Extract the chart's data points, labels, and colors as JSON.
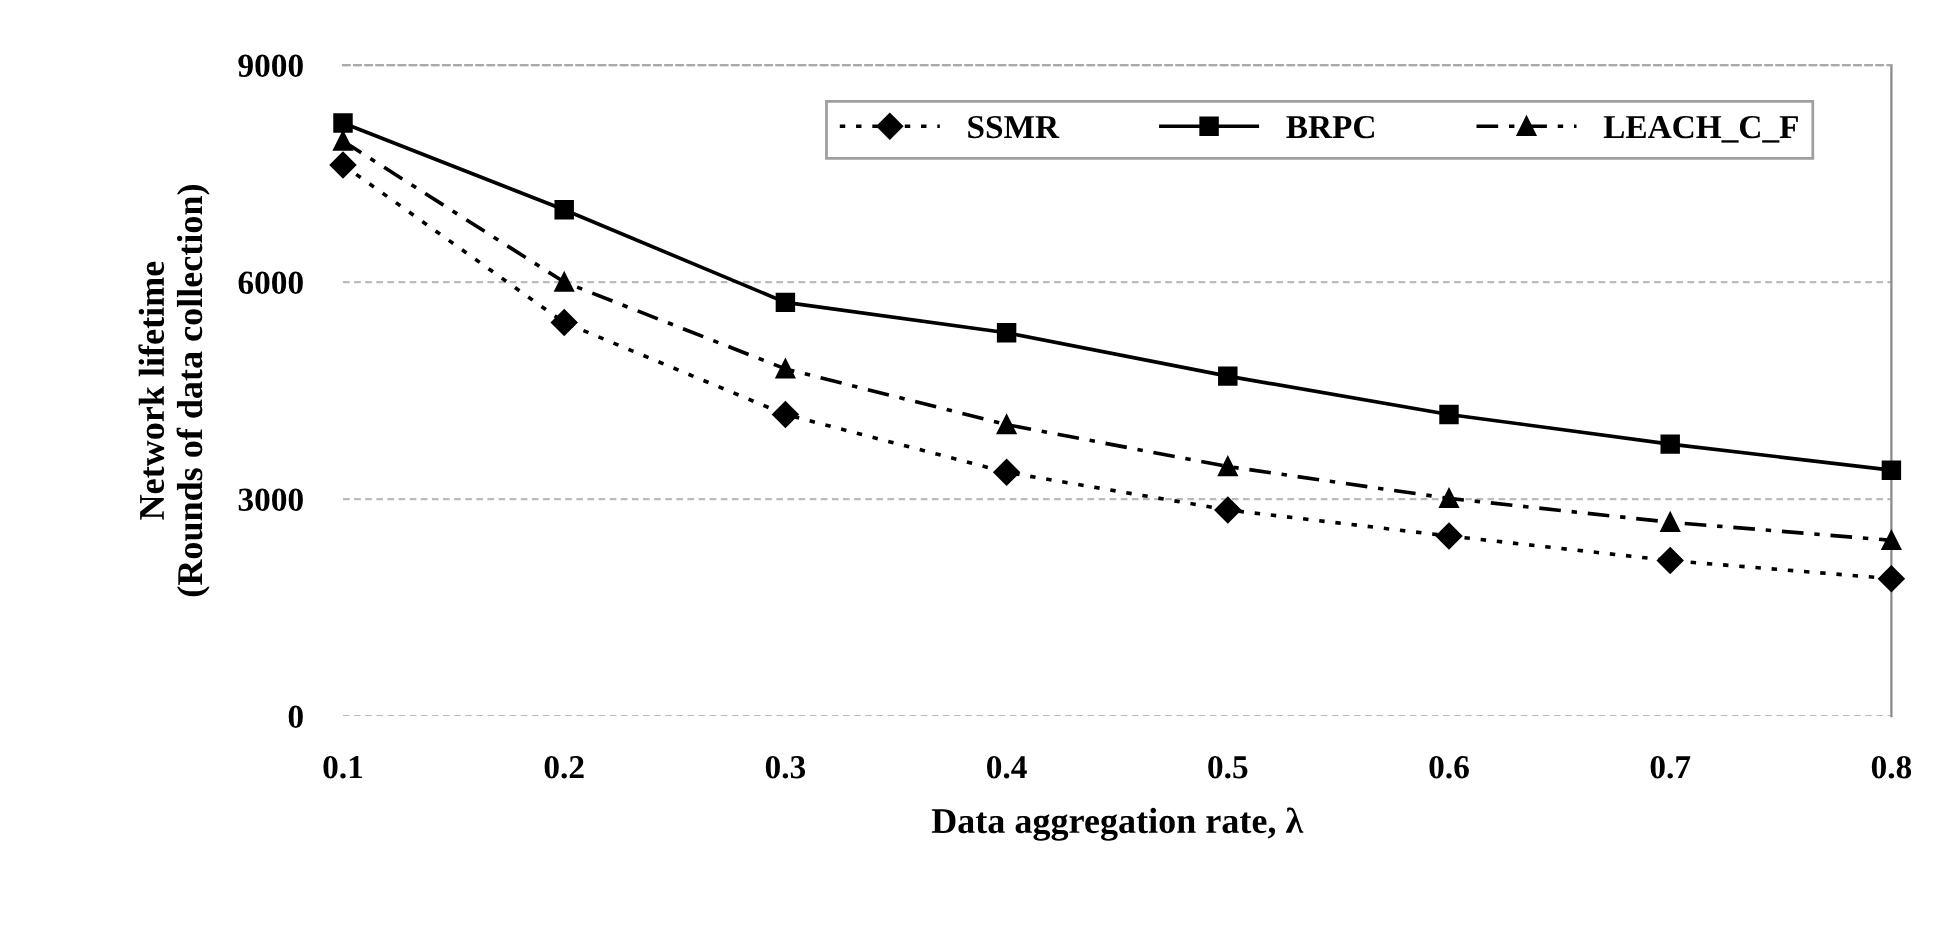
{
  "chart_data": {
    "type": "line",
    "xlabel": "Data aggregation rate, λ",
    "ylabel": "Network lifetime\n(Rounds of data collection)",
    "x": [
      0.1,
      0.2,
      0.3,
      0.4,
      0.5,
      0.6,
      0.7,
      0.8
    ],
    "series": [
      {
        "name": "SSMR",
        "color": "#000000",
        "marker": "diamond",
        "line_style": "dotted",
        "values": [
          7620,
          5440,
          4170,
          3370,
          2850,
          2490,
          2150,
          1900
        ]
      },
      {
        "name": "BRPC",
        "color": "#000000",
        "marker": "square",
        "line_style": "solid",
        "values": [
          8200,
          7000,
          5720,
          5300,
          4700,
          4170,
          3760,
          3400
        ]
      },
      {
        "name": "LEACH_C_F",
        "color": "#000000",
        "marker": "triangle",
        "line_style": "dashed",
        "values": [
          7950,
          6000,
          4800,
          4030,
          3450,
          3010,
          2680,
          2430
        ]
      }
    ],
    "xlim": [
      0.1,
      0.8
    ],
    "xticks": [
      0.1,
      0.2,
      0.3,
      0.4,
      0.5,
      0.6,
      0.7,
      0.8
    ],
    "ylim": [
      0,
      9000
    ],
    "yticks": [
      0,
      3000,
      6000,
      9000
    ],
    "grid": "y",
    "legend": "top right"
  }
}
